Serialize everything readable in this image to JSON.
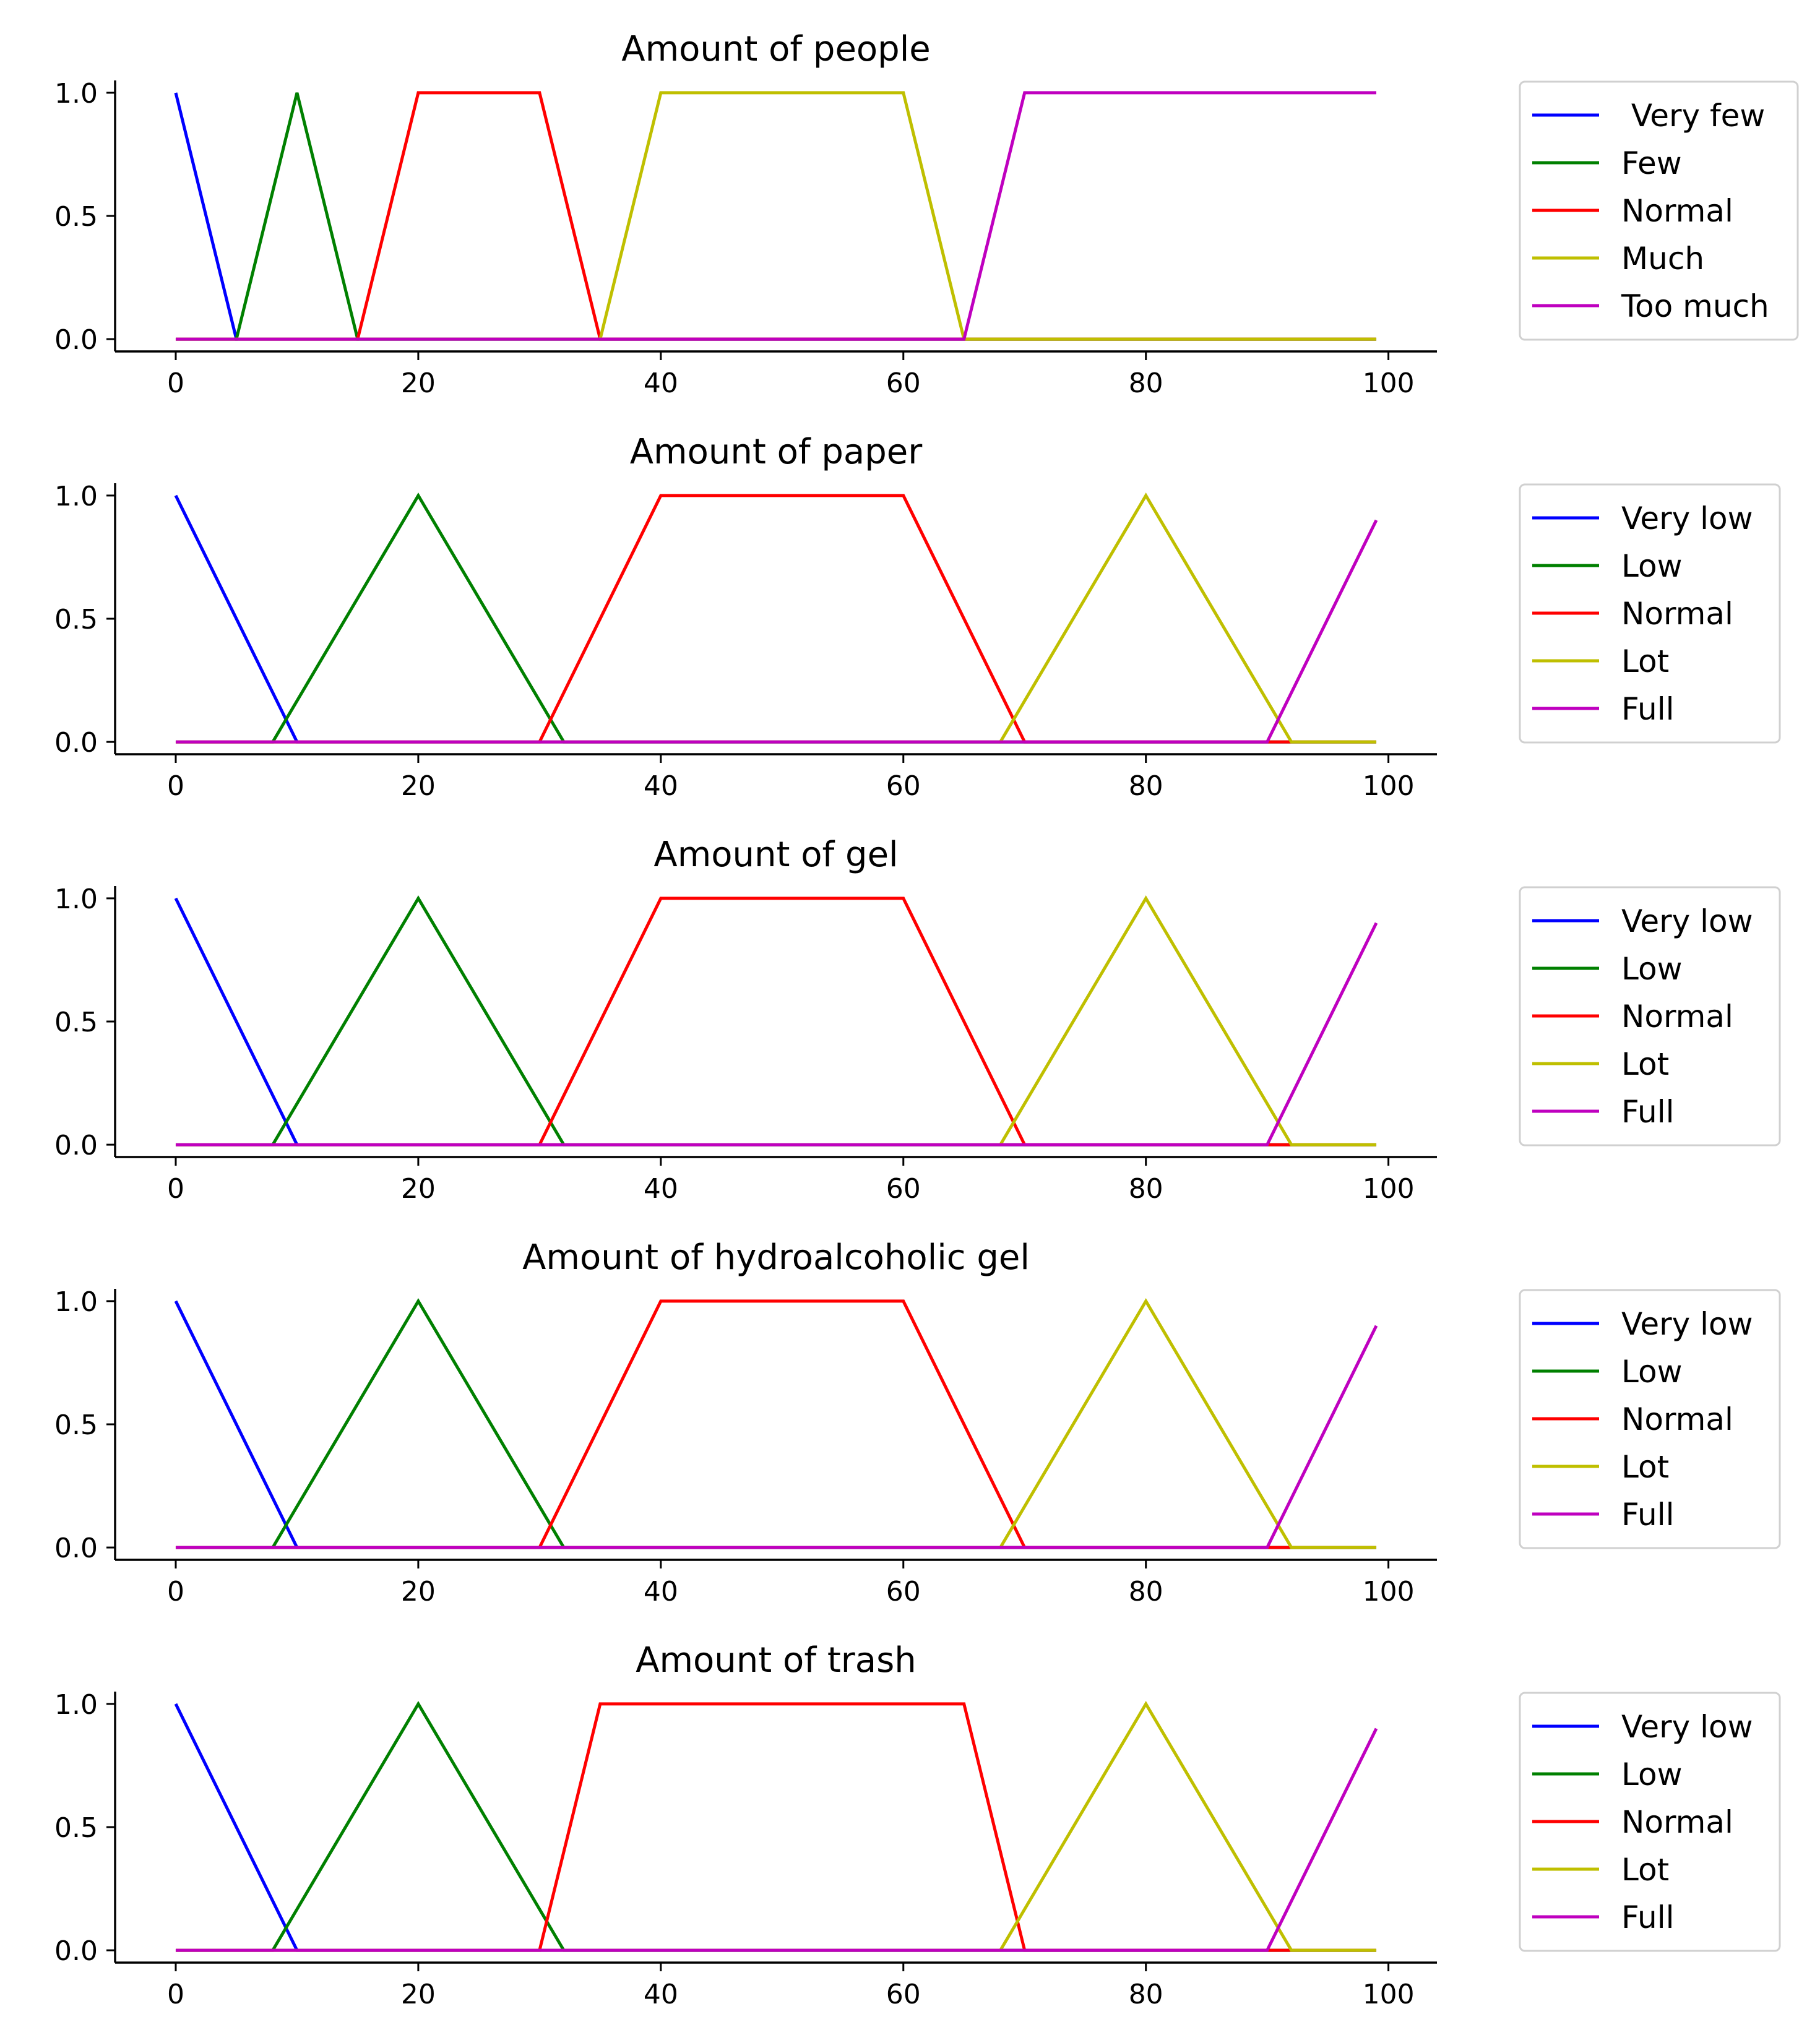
{
  "figure": {
    "description_free": true
  },
  "chart_data": [
    {
      "type": "line",
      "title": "Amount of people",
      "xlabel": "",
      "ylabel": "",
      "xlim": [
        -5,
        104
      ],
      "ylim": [
        -0.05,
        1.05
      ],
      "xticks": [
        0,
        20,
        40,
        60,
        80,
        100
      ],
      "xtick_labels": [
        "0",
        "20",
        "40",
        "60",
        "80",
        "100"
      ],
      "yticks": [
        0,
        0.5,
        1
      ],
      "ytick_labels": [
        "0.0",
        "0.5",
        "1.0"
      ],
      "legend_position": "outside-right",
      "series": [
        {
          "name": " Very few",
          "color": "#0000ff",
          "x": [
            0,
            5,
            99
          ],
          "y": [
            1,
            0,
            0
          ]
        },
        {
          "name": "Few",
          "color": "#008000",
          "x": [
            0,
            5,
            10,
            15,
            99
          ],
          "y": [
            0,
            0,
            1,
            0,
            0
          ]
        },
        {
          "name": "Normal",
          "color": "#ff0000",
          "x": [
            0,
            15,
            20,
            30,
            35,
            99
          ],
          "y": [
            0,
            0,
            1,
            1,
            0,
            0
          ]
        },
        {
          "name": "Much",
          "color": "#bfbf00",
          "x": [
            0,
            35,
            40,
            60,
            65,
            99
          ],
          "y": [
            0,
            0,
            1,
            1,
            0,
            0
          ]
        },
        {
          "name": "Too much",
          "color": "#bf00bf",
          "x": [
            0,
            65,
            70,
            99
          ],
          "y": [
            0,
            0,
            1,
            1
          ]
        }
      ]
    },
    {
      "type": "line",
      "title": "Amount of paper",
      "xlabel": "",
      "ylabel": "",
      "xlim": [
        -5,
        104
      ],
      "ylim": [
        -0.05,
        1.05
      ],
      "xticks": [
        0,
        20,
        40,
        60,
        80,
        100
      ],
      "xtick_labels": [
        "0",
        "20",
        "40",
        "60",
        "80",
        "100"
      ],
      "yticks": [
        0,
        0.5,
        1
      ],
      "ytick_labels": [
        "0.0",
        "0.5",
        "1.0"
      ],
      "legend_position": "outside-right",
      "series": [
        {
          "name": "Very low",
          "color": "#0000ff",
          "x": [
            0,
            10,
            99
          ],
          "y": [
            1,
            0,
            0
          ]
        },
        {
          "name": "Low",
          "color": "#008000",
          "x": [
            0,
            8,
            20,
            32,
            99
          ],
          "y": [
            0,
            0,
            1,
            0,
            0
          ]
        },
        {
          "name": "Normal",
          "color": "#ff0000",
          "x": [
            0,
            30,
            40,
            60,
            70,
            99
          ],
          "y": [
            0,
            0,
            1,
            1,
            0,
            0
          ]
        },
        {
          "name": "Lot",
          "color": "#bfbf00",
          "x": [
            0,
            68,
            80,
            92,
            99
          ],
          "y": [
            0,
            0,
            1,
            0,
            0
          ]
        },
        {
          "name": "Full",
          "color": "#bf00bf",
          "x": [
            0,
            90,
            99
          ],
          "y": [
            0,
            0,
            0.9
          ]
        }
      ]
    },
    {
      "type": "line",
      "title": "Amount of gel",
      "xlabel": "",
      "ylabel": "",
      "xlim": [
        -5,
        104
      ],
      "ylim": [
        -0.05,
        1.05
      ],
      "xticks": [
        0,
        20,
        40,
        60,
        80,
        100
      ],
      "xtick_labels": [
        "0",
        "20",
        "40",
        "60",
        "80",
        "100"
      ],
      "yticks": [
        0,
        0.5,
        1
      ],
      "ytick_labels": [
        "0.0",
        "0.5",
        "1.0"
      ],
      "legend_position": "outside-right",
      "series": [
        {
          "name": "Very low",
          "color": "#0000ff",
          "x": [
            0,
            10,
            99
          ],
          "y": [
            1,
            0,
            0
          ]
        },
        {
          "name": "Low",
          "color": "#008000",
          "x": [
            0,
            8,
            20,
            32,
            99
          ],
          "y": [
            0,
            0,
            1,
            0,
            0
          ]
        },
        {
          "name": "Normal",
          "color": "#ff0000",
          "x": [
            0,
            30,
            40,
            60,
            70,
            99
          ],
          "y": [
            0,
            0,
            1,
            1,
            0,
            0
          ]
        },
        {
          "name": "Lot",
          "color": "#bfbf00",
          "x": [
            0,
            68,
            80,
            92,
            99
          ],
          "y": [
            0,
            0,
            1,
            0,
            0
          ]
        },
        {
          "name": "Full",
          "color": "#bf00bf",
          "x": [
            0,
            90,
            99
          ],
          "y": [
            0,
            0,
            0.9
          ]
        }
      ]
    },
    {
      "type": "line",
      "title": "Amount of hydroalcoholic gel",
      "xlabel": "",
      "ylabel": "",
      "xlim": [
        -5,
        104
      ],
      "ylim": [
        -0.05,
        1.05
      ],
      "xticks": [
        0,
        20,
        40,
        60,
        80,
        100
      ],
      "xtick_labels": [
        "0",
        "20",
        "40",
        "60",
        "80",
        "100"
      ],
      "yticks": [
        0,
        0.5,
        1
      ],
      "ytick_labels": [
        "0.0",
        "0.5",
        "1.0"
      ],
      "legend_position": "outside-right",
      "series": [
        {
          "name": "Very low",
          "color": "#0000ff",
          "x": [
            0,
            10,
            99
          ],
          "y": [
            1,
            0,
            0
          ]
        },
        {
          "name": "Low",
          "color": "#008000",
          "x": [
            0,
            8,
            20,
            32,
            99
          ],
          "y": [
            0,
            0,
            1,
            0,
            0
          ]
        },
        {
          "name": "Normal",
          "color": "#ff0000",
          "x": [
            0,
            30,
            40,
            60,
            70,
            99
          ],
          "y": [
            0,
            0,
            1,
            1,
            0,
            0
          ]
        },
        {
          "name": "Lot",
          "color": "#bfbf00",
          "x": [
            0,
            68,
            80,
            92,
            99
          ],
          "y": [
            0,
            0,
            1,
            0,
            0
          ]
        },
        {
          "name": "Full",
          "color": "#bf00bf",
          "x": [
            0,
            90,
            99
          ],
          "y": [
            0,
            0,
            0.9
          ]
        }
      ]
    },
    {
      "type": "line",
      "title": "Amount of trash",
      "xlabel": "",
      "ylabel": "",
      "xlim": [
        -5,
        104
      ],
      "ylim": [
        -0.05,
        1.05
      ],
      "xticks": [
        0,
        20,
        40,
        60,
        80,
        100
      ],
      "xtick_labels": [
        "0",
        "20",
        "40",
        "60",
        "80",
        "100"
      ],
      "yticks": [
        0,
        0.5,
        1
      ],
      "ytick_labels": [
        "0.0",
        "0.5",
        "1.0"
      ],
      "legend_position": "outside-right",
      "series": [
        {
          "name": "Very low",
          "color": "#0000ff",
          "x": [
            0,
            10,
            99
          ],
          "y": [
            1,
            0,
            0
          ]
        },
        {
          "name": "Low",
          "color": "#008000",
          "x": [
            0,
            8,
            20,
            32,
            99
          ],
          "y": [
            0,
            0,
            1,
            0,
            0
          ]
        },
        {
          "name": "Normal",
          "color": "#ff0000",
          "x": [
            0,
            30,
            35,
            65,
            70,
            99
          ],
          "y": [
            0,
            0,
            1,
            1,
            0,
            0
          ]
        },
        {
          "name": "Lot",
          "color": "#bfbf00",
          "x": [
            0,
            68,
            80,
            92,
            99
          ],
          "y": [
            0,
            0,
            1,
            0,
            0
          ]
        },
        {
          "name": "Full",
          "color": "#bf00bf",
          "x": [
            0,
            90,
            99
          ],
          "y": [
            0,
            0,
            0.9
          ]
        }
      ]
    }
  ]
}
